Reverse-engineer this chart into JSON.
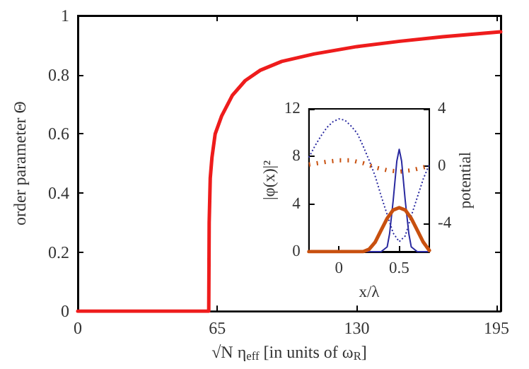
{
  "chart_data": [
    {
      "type": "line",
      "xlabel": "√N η$_{eff}$ [in units of ω$_{R}$]",
      "ylabel": "order parameter Θ",
      "xlim": [
        0,
        197
      ],
      "xticks": [
        0,
        65,
        130,
        195
      ],
      "ylim": [
        0,
        1
      ],
      "yticks": [
        0,
        0.2,
        0.4,
        0.6,
        0.8,
        1
      ],
      "grid": false,
      "marker": "none",
      "line_style": "solid",
      "series": [
        {
          "color": "#ee1c1c",
          "x": [
            0,
            61,
            61.2,
            61.7,
            62.5,
            64,
            67,
            72,
            78,
            85,
            95,
            110,
            130,
            150,
            170,
            197
          ],
          "values": [
            0,
            0,
            0.3,
            0.45,
            0.52,
            0.6,
            0.66,
            0.73,
            0.78,
            0.815,
            0.845,
            0.87,
            0.895,
            0.913,
            0.928,
            0.945
          ]
        }
      ]
    },
    {
      "type": "line",
      "xlabel": "x/λ",
      "ylabel": "|φ(x)|²",
      "y2label": "potential",
      "xlim": [
        -0.25,
        0.75
      ],
      "xticks": [
        0,
        0.5
      ],
      "ylim": [
        0,
        12
      ],
      "yticks": [
        0,
        4,
        8,
        12
      ],
      "y2lim": [
        -6,
        4
      ],
      "y2ticks": [
        4,
        0,
        -4
      ],
      "grid": false,
      "marker": "none",
      "series": [
        {
          "color": "#2a2aa0",
          "axis": "y2",
          "line_style": "dotted",
          "x": [
            -0.25,
            -0.2,
            -0.15,
            -0.1,
            -0.05,
            0,
            0.05,
            0.1,
            0.15,
            0.2,
            0.25,
            0.3,
            0.35,
            0.4,
            0.45,
            0.5,
            0.55,
            0.6,
            0.65,
            0.7,
            0.75
          ],
          "values": [
            0.6,
            1.4,
            2.1,
            2.7,
            3.1,
            3.3,
            3.2,
            2.8,
            2.3,
            1.4,
            0.4,
            -0.7,
            -2.1,
            -3.4,
            -4.7,
            -5.3,
            -4.9,
            -3.5,
            -2.2,
            -0.9,
            0.1
          ]
        },
        {
          "color": "#c8500f",
          "axis": "y2",
          "line_style": "dotted",
          "x": [
            -0.25,
            -0.1,
            0,
            0.1,
            0.2,
            0.3,
            0.4,
            0.5,
            0.6,
            0.7,
            0.75
          ],
          "values": [
            0.1,
            0.3,
            0.4,
            0.4,
            0.2,
            -0.1,
            -0.3,
            -0.4,
            -0.3,
            -0.1,
            0
          ]
        },
        {
          "color": "#2a2aa0",
          "axis": "y",
          "line_style": "solid",
          "x": [
            -0.25,
            0.35,
            0.4,
            0.42,
            0.45,
            0.48,
            0.5,
            0.52,
            0.55,
            0.58,
            0.6,
            0.65,
            0.75
          ],
          "values": [
            0,
            0,
            0.4,
            1.5,
            4.3,
            7.6,
            8.6,
            7.6,
            4.3,
            1.5,
            0.4,
            0,
            0
          ]
        },
        {
          "color": "#c8500f",
          "axis": "y",
          "line_style": "solid",
          "x": [
            -0.25,
            0.2,
            0.25,
            0.3,
            0.35,
            0.4,
            0.45,
            0.5,
            0.55,
            0.6,
            0.65,
            0.7,
            0.75
          ],
          "values": [
            0,
            0,
            0.2,
            0.8,
            1.8,
            2.8,
            3.5,
            3.7,
            3.5,
            2.8,
            1.8,
            0.8,
            0.1
          ]
        }
      ]
    }
  ]
}
